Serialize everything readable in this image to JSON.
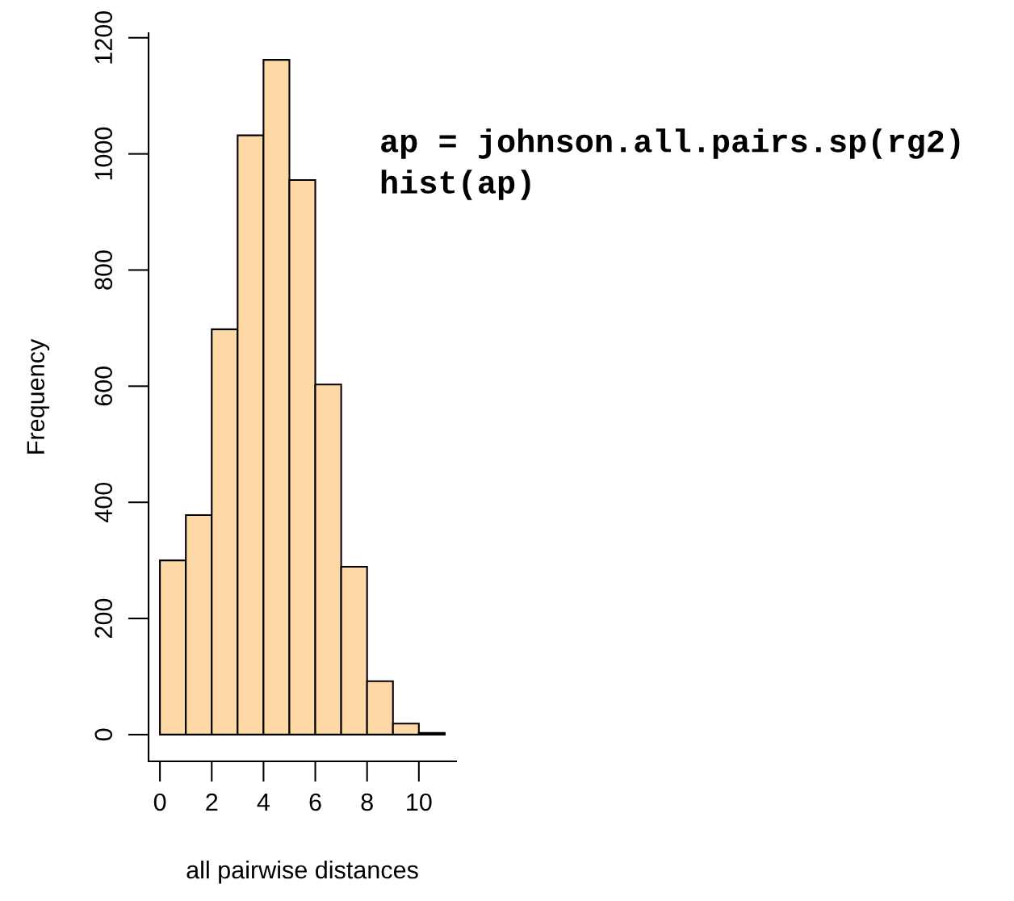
{
  "chart_data": {
    "type": "histogram",
    "xlabel": "all pairwise distances",
    "ylabel": "Frequency",
    "bins": [
      0,
      1,
      2,
      3,
      4,
      5,
      6,
      7,
      8,
      9,
      10,
      11
    ],
    "values": [
      300,
      378,
      698,
      1032,
      1162,
      955,
      603,
      289,
      92,
      19,
      3
    ],
    "color": "#fed9a6",
    "xlim": [
      -0.44,
      11.44
    ],
    "ylim": [
      -46,
      1208
    ],
    "xticks": [
      0,
      2,
      4,
      6,
      8,
      10
    ],
    "yticks": [
      0,
      200,
      400,
      600,
      800,
      1000,
      1200
    ],
    "grid": false,
    "annotations": [
      "ap = johnson.all.pairs.sp(rg2)",
      "hist(ap)"
    ]
  }
}
